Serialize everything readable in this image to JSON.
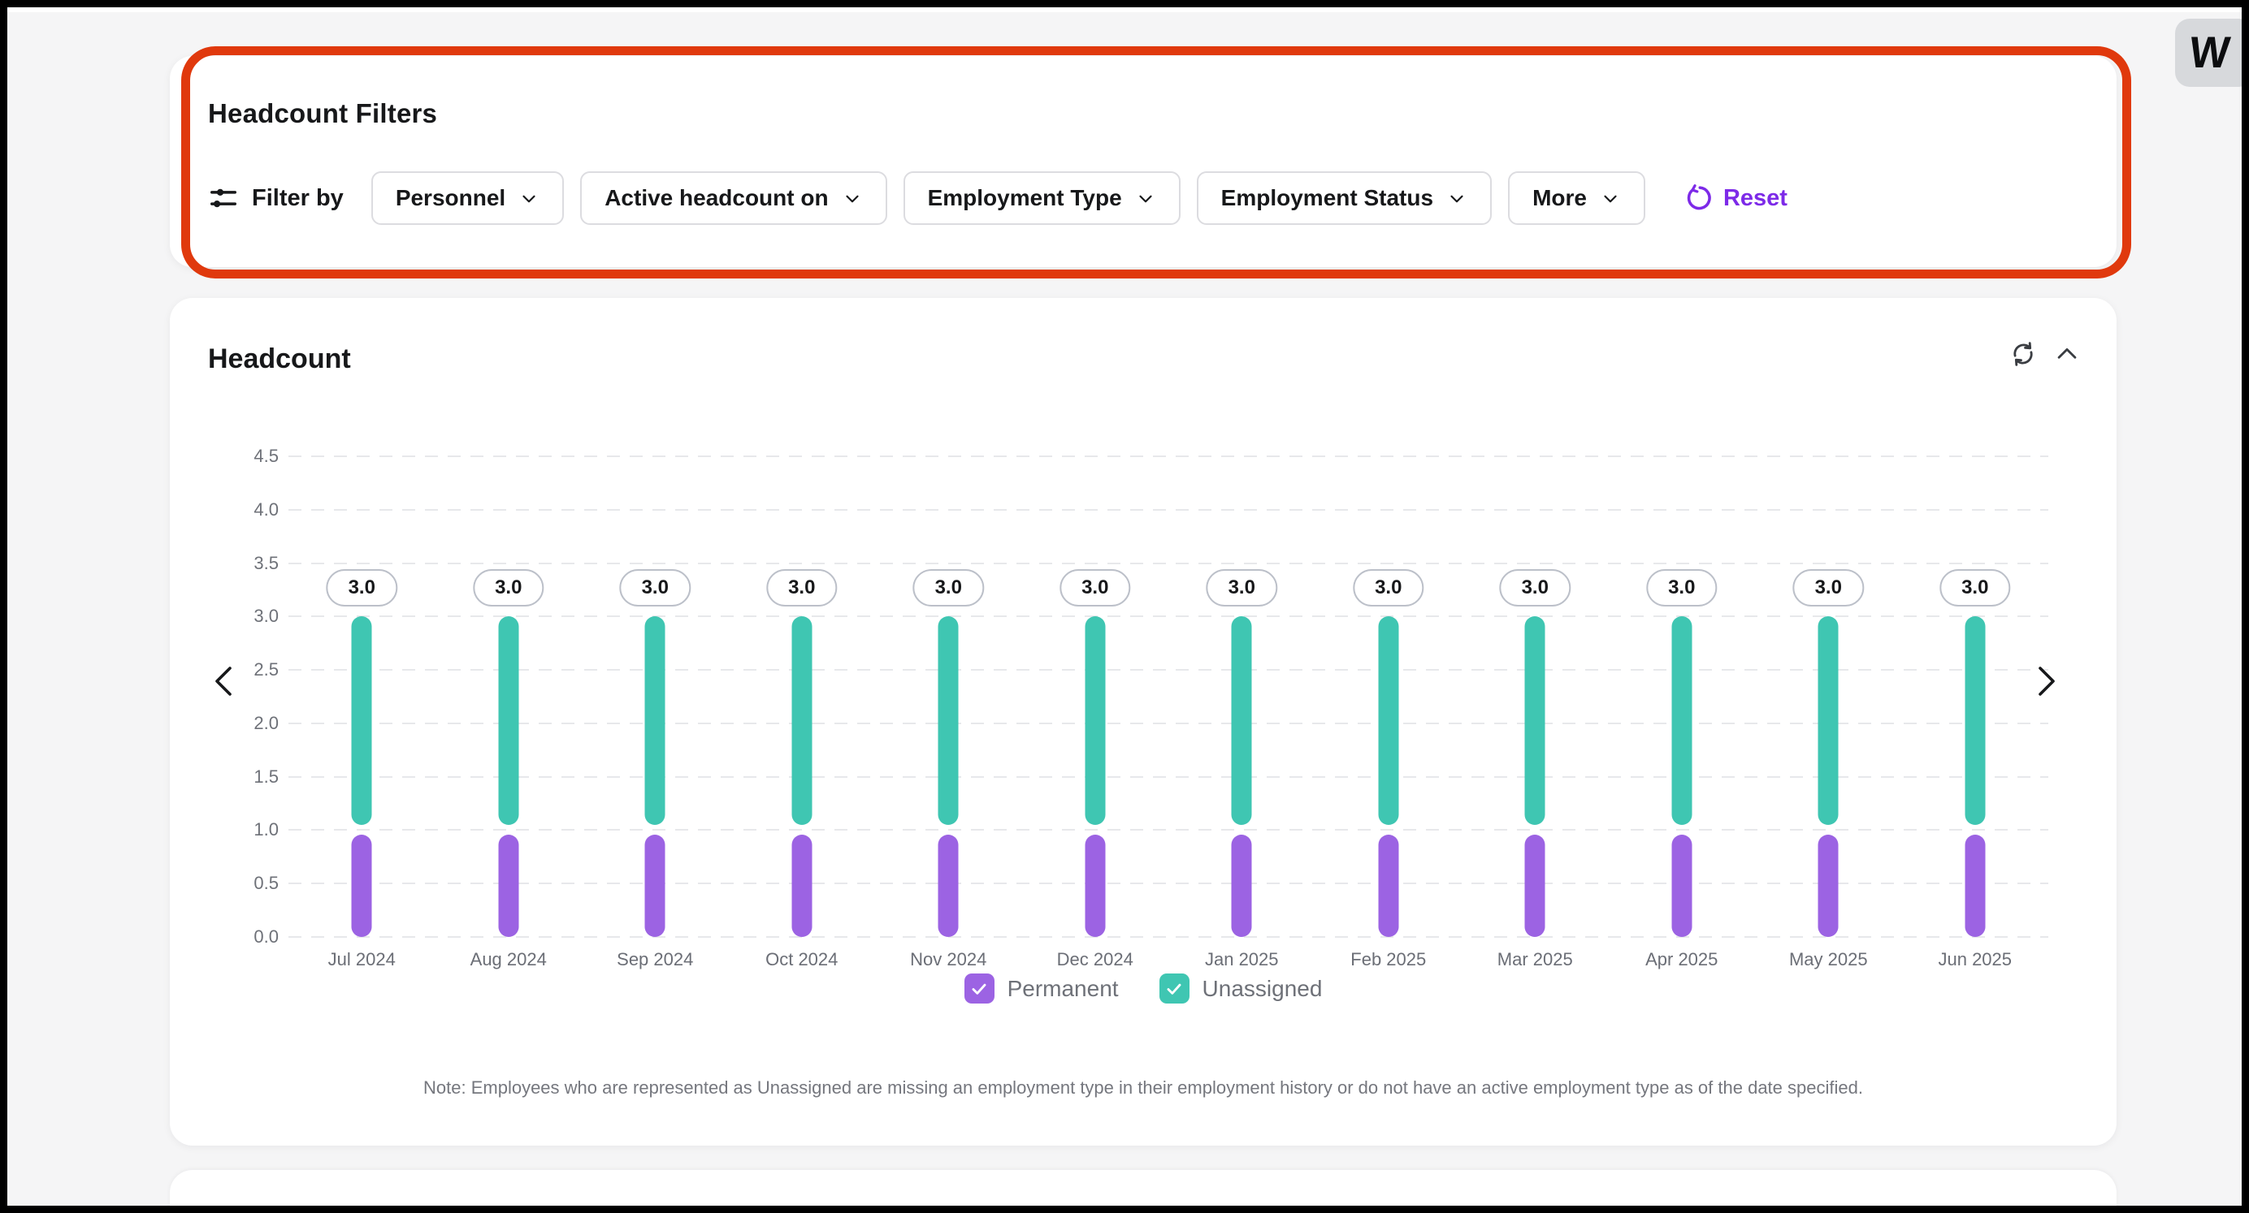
{
  "logo": {
    "letter": "W"
  },
  "colors": {
    "accent": "#7d2ae8",
    "annotation": "#e0390d",
    "permanent": "#9c63e3",
    "unassigned": "#3fc6b2",
    "page_background": "#f5f5f6",
    "card_background": "#ffffff"
  },
  "icons": {
    "filter": "sliders-horizontal",
    "dropdown": "chevron-down",
    "reset": "rotate-ccw",
    "refresh": "rotate-cw",
    "collapse": "chevron-up",
    "prev": "chevron-left",
    "next": "chevron-right",
    "legend_check": "checkmark"
  },
  "filter_panel": {
    "title": "Headcount Filters",
    "filter_by_label": "Filter by",
    "buttons": [
      {
        "label": "Personnel"
      },
      {
        "label": "Active headcount on"
      },
      {
        "label": "Employment Type"
      },
      {
        "label": "Employment Status"
      },
      {
        "label": "More"
      }
    ],
    "reset_label": "Reset"
  },
  "chart_card": {
    "title": "Headcount",
    "note": "Note: Employees who are represented as Unassigned are missing an employment type in their employment history or do not have an active employment type as of the date specified."
  },
  "chart_data": {
    "type": "bar",
    "stacked": true,
    "title": "Headcount",
    "categories": [
      "Jul 2024",
      "Aug 2024",
      "Sep 2024",
      "Oct 2024",
      "Nov 2024",
      "Dec 2024",
      "Jan 2025",
      "Feb 2025",
      "Mar 2025",
      "Apr 2025",
      "May 2025",
      "Jun 2025"
    ],
    "series": [
      {
        "name": "Permanent",
        "color": "#9c63e3",
        "values": [
          1,
          1,
          1,
          1,
          1,
          1,
          1,
          1,
          1,
          1,
          1,
          1
        ]
      },
      {
        "name": "Unassigned",
        "color": "#3fc6b2",
        "values": [
          2,
          2,
          2,
          2,
          2,
          2,
          2,
          2,
          2,
          2,
          2,
          2
        ]
      }
    ],
    "bar_total_labels": [
      "3.0",
      "3.0",
      "3.0",
      "3.0",
      "3.0",
      "3.0",
      "3.0",
      "3.0",
      "3.0",
      "3.0",
      "3.0",
      "3.0"
    ],
    "ylim": [
      0,
      4.5
    ],
    "yticks": [
      "0.0",
      "0.5",
      "1.0",
      "1.5",
      "2.0",
      "2.5",
      "3.0",
      "3.5",
      "4.0",
      "4.5"
    ],
    "xlabel": "",
    "ylabel": "",
    "grid": "horizontal-dashed",
    "legend_position": "bottom",
    "legend": [
      {
        "label": "Permanent",
        "color": "#9c63e3",
        "checked": true
      },
      {
        "label": "Unassigned",
        "color": "#3fc6b2",
        "checked": true
      }
    ]
  }
}
